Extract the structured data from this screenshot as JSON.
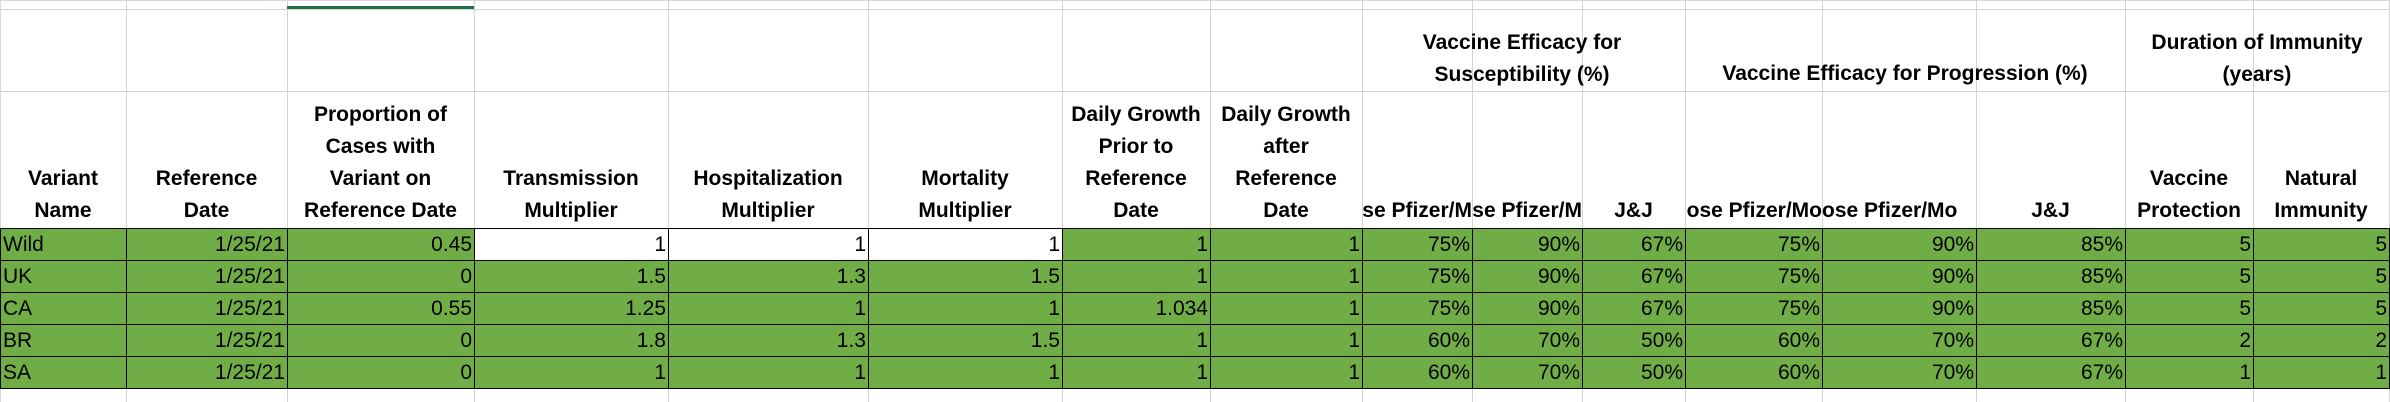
{
  "colors": {
    "green_fill": "#70ad47",
    "selection_accent": "#217346"
  },
  "group_headers": {
    "susceptibility": "Vaccine Efficacy for\nSusceptibility (%)",
    "progression": "Vaccine Efficacy for Progression (%)",
    "immunity": "Duration of Immunity\n(years)"
  },
  "column_headers": {
    "variant_name": "Variant\nName",
    "reference_date": "Reference\nDate",
    "proportion": "Proportion of\nCases with\nVariant on\nReference Date",
    "transmission": "Transmission\nMultiplier",
    "hospitalization": "Hospitalization\nMultiplier",
    "mortality": "Mortality\nMultiplier",
    "growth_prior": "Daily Growth\nPrior to\nReference\nDate",
    "growth_after": "Daily Growth\nafter\nReference\nDate",
    "sus_pfizer_1": "se Pfizer/M",
    "sus_pfizer_2": "se Pfizer/M",
    "sus_jj": "J&J",
    "prog_pfizer_1": "ose Pfizer/Mo",
    "prog_pfizer_2": "ose Pfizer/Mo",
    "prog_jj": "J&J",
    "vaccine_protection": "Vaccine\nProtection",
    "natural_immunity": "Natural\nImmunity"
  },
  "rows": [
    {
      "name": "Wild",
      "date": "1/25/21",
      "proportion": "0.45",
      "transmission": "1",
      "hospitalization": "1",
      "mortality": "1",
      "growth_prior": "1",
      "growth_after": "1",
      "sus1": "75%",
      "sus2": "90%",
      "sus_jj": "67%",
      "prog1": "75%",
      "prog2": "90%",
      "prog_jj": "85%",
      "vaccine_protection": "5",
      "natural_immunity": "5"
    },
    {
      "name": "UK",
      "date": "1/25/21",
      "proportion": "0",
      "transmission": "1.5",
      "hospitalization": "1.3",
      "mortality": "1.5",
      "growth_prior": "1",
      "growth_after": "1",
      "sus1": "75%",
      "sus2": "90%",
      "sus_jj": "67%",
      "prog1": "75%",
      "prog2": "90%",
      "prog_jj": "85%",
      "vaccine_protection": "5",
      "natural_immunity": "5"
    },
    {
      "name": "CA",
      "date": "1/25/21",
      "proportion": "0.55",
      "transmission": "1.25",
      "hospitalization": "1",
      "mortality": "1",
      "growth_prior": "1.034",
      "growth_after": "1",
      "sus1": "75%",
      "sus2": "90%",
      "sus_jj": "67%",
      "prog1": "75%",
      "prog2": "90%",
      "prog_jj": "85%",
      "vaccine_protection": "5",
      "natural_immunity": "5"
    },
    {
      "name": "BR",
      "date": "1/25/21",
      "proportion": "0",
      "transmission": "1.8",
      "hospitalization": "1.3",
      "mortality": "1.5",
      "growth_prior": "1",
      "growth_after": "1",
      "sus1": "60%",
      "sus2": "70%",
      "sus_jj": "50%",
      "prog1": "60%",
      "prog2": "70%",
      "prog_jj": "67%",
      "vaccine_protection": "2",
      "natural_immunity": "2"
    },
    {
      "name": "SA",
      "date": "1/25/21",
      "proportion": "0",
      "transmission": "1",
      "hospitalization": "1",
      "mortality": "1",
      "growth_prior": "1",
      "growth_after": "1",
      "sus1": "60%",
      "sus2": "70%",
      "sus_jj": "50%",
      "prog1": "60%",
      "prog2": "70%",
      "prog_jj": "67%",
      "vaccine_protection": "1",
      "natural_immunity": "1"
    }
  ]
}
